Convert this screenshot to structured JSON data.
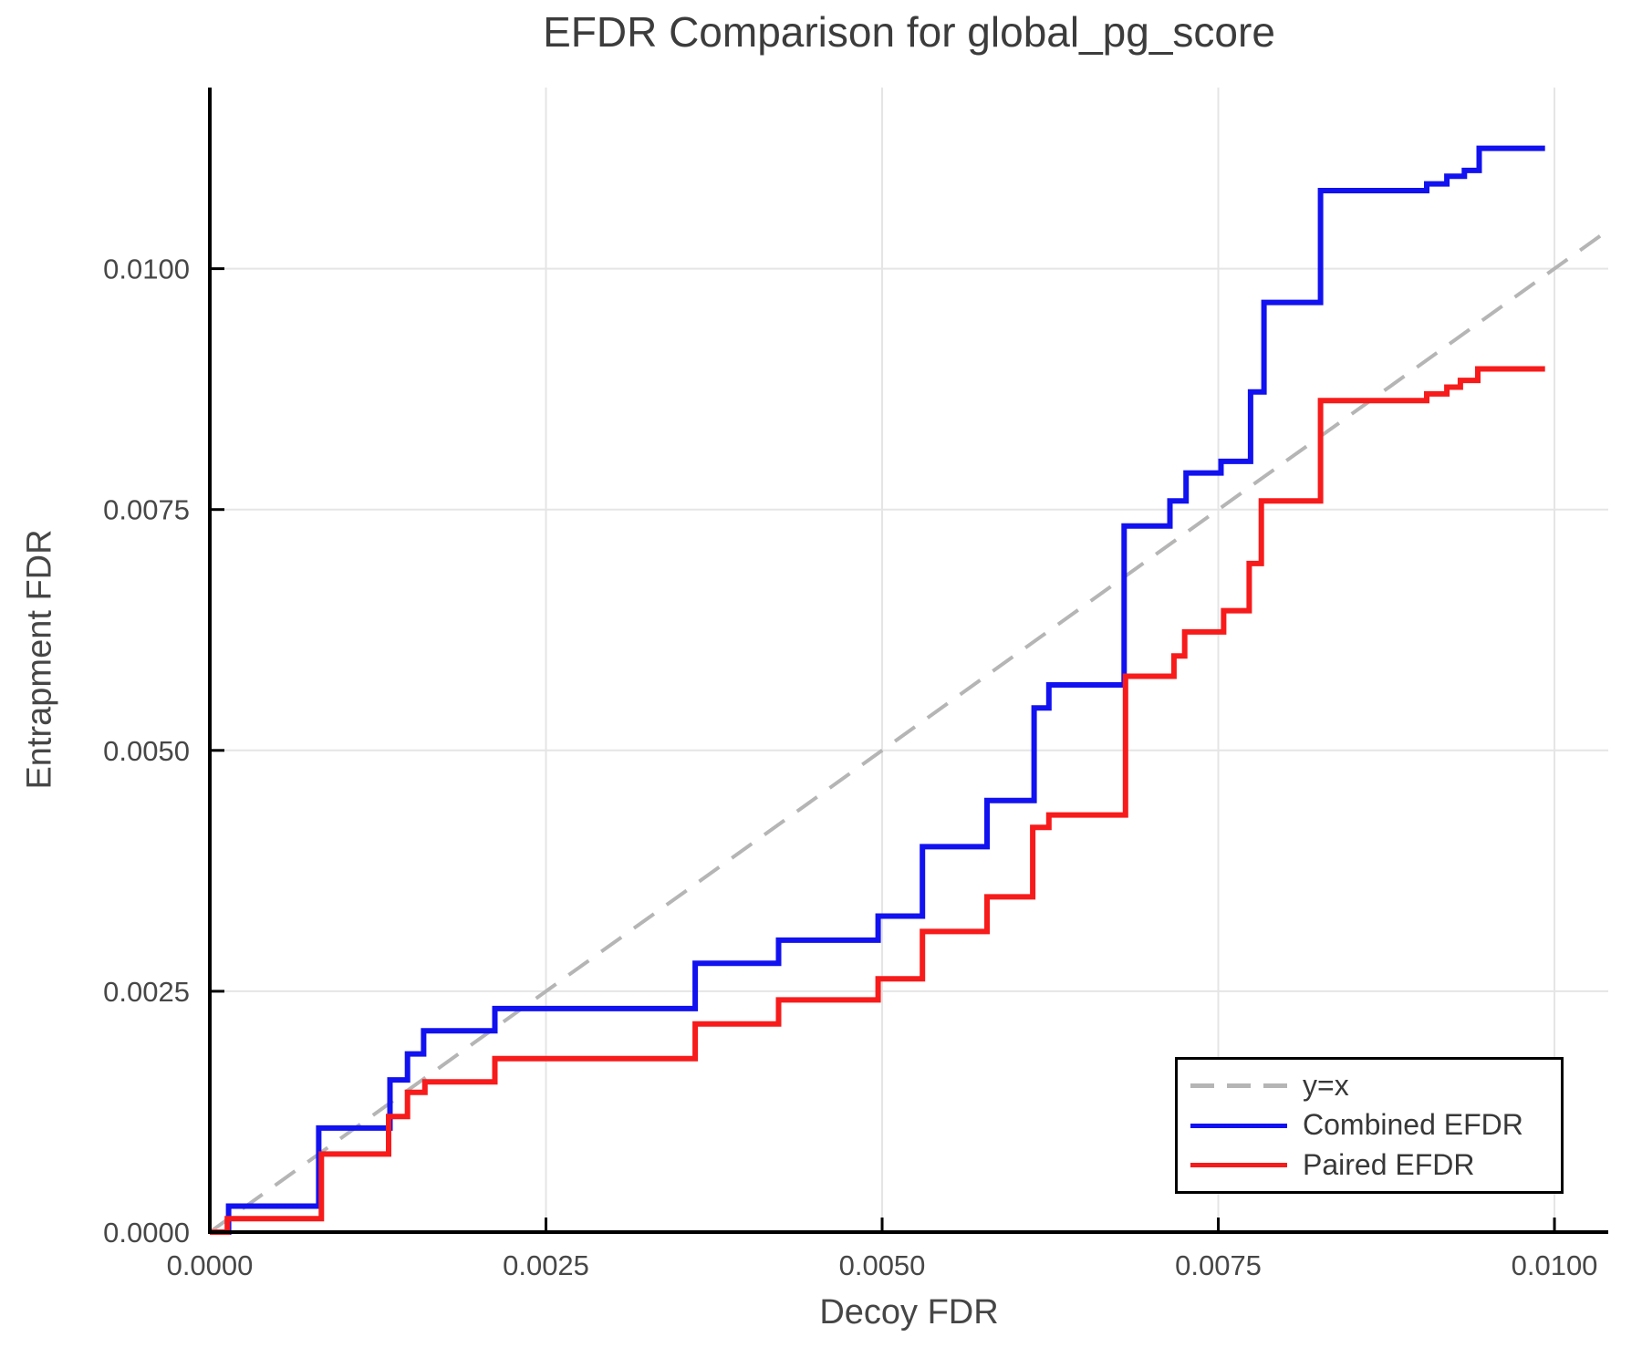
{
  "title": "EFDR Comparison for global_pg_score",
  "x_axis": {
    "label": "Decoy FDR",
    "tick_labels": [
      "0.0000",
      "0.0025",
      "0.0050",
      "0.0075",
      "0.0100"
    ],
    "tick_values": [
      0,
      0.0025,
      0.005,
      0.0075,
      0.01
    ]
  },
  "y_axis": {
    "label": "Entrapment FDR",
    "tick_labels": [
      "0.0000",
      "0.0025",
      "0.0050",
      "0.0075",
      "0.0100"
    ],
    "tick_values": [
      0,
      0.0025,
      0.005,
      0.0075,
      0.01
    ]
  },
  "legend": {
    "entries": [
      {
        "label": "y=x",
        "color": "#b5b5b5",
        "style": "dashed"
      },
      {
        "label": "Combined EFDR",
        "color": "#1212f0",
        "style": "solid"
      },
      {
        "label": "Paired EFDR",
        "color": "#f71b1b",
        "style": "solid"
      }
    ]
  },
  "style_colors": {
    "grid": "#e5e5e5",
    "spine": "#000000",
    "tick_text": "#474747"
  },
  "chart_data": {
    "type": "line",
    "subtype": "step",
    "title": "EFDR Comparison for global_pg_score",
    "xlabel": "Decoy FDR",
    "ylabel": "Entrapment FDR",
    "xlim": [
      0,
      0.0104
    ],
    "ylim": [
      0,
      0.01188
    ],
    "grid": true,
    "legend_position": "lower right",
    "reference_line": {
      "name": "y=x",
      "points": [
        [
          0,
          0
        ],
        [
          0.0104,
          0.0104
        ]
      ],
      "color": "#b5b5b5",
      "dashed": true
    },
    "series": [
      {
        "name": "Combined EFDR",
        "color": "#1212f0",
        "step": "post",
        "points": [
          [
            0.0,
            0.0
          ],
          [
            0.00014,
            0.00027
          ],
          [
            0.00081,
            0.00108
          ],
          [
            0.00134,
            0.00158
          ],
          [
            0.00147,
            0.00185
          ],
          [
            0.00159,
            0.00209
          ],
          [
            0.00212,
            0.00232
          ],
          [
            0.00361,
            0.00279
          ],
          [
            0.00423,
            0.00303
          ],
          [
            0.00497,
            0.00328
          ],
          [
            0.0053,
            0.004
          ],
          [
            0.00578,
            0.00448
          ],
          [
            0.00613,
            0.00544
          ],
          [
            0.00624,
            0.00568
          ],
          [
            0.0068,
            0.00733
          ],
          [
            0.00714,
            0.00759
          ],
          [
            0.00726,
            0.00788
          ],
          [
            0.00752,
            0.008
          ],
          [
            0.00774,
            0.00872
          ],
          [
            0.00784,
            0.00965
          ],
          [
            0.00826,
            0.01081
          ],
          [
            0.00905,
            0.01088
          ],
          [
            0.0092,
            0.01096
          ],
          [
            0.00933,
            0.01102
          ],
          [
            0.00944,
            0.01125
          ],
          [
            0.00993,
            0.01125
          ]
        ]
      },
      {
        "name": "Paired EFDR",
        "color": "#f71b1b",
        "step": "post",
        "points": [
          [
            0.0,
            0.0
          ],
          [
            0.00013,
            0.00014
          ],
          [
            0.00083,
            0.00081
          ],
          [
            0.00133,
            0.0012
          ],
          [
            0.00147,
            0.00145
          ],
          [
            0.0016,
            0.00156
          ],
          [
            0.00212,
            0.0018
          ],
          [
            0.00361,
            0.00216
          ],
          [
            0.00423,
            0.00241
          ],
          [
            0.00497,
            0.00263
          ],
          [
            0.0053,
            0.00312
          ],
          [
            0.00578,
            0.00348
          ],
          [
            0.00612,
            0.0042
          ],
          [
            0.00624,
            0.00433
          ],
          [
            0.00681,
            0.00577
          ],
          [
            0.00717,
            0.00598
          ],
          [
            0.00725,
            0.00623
          ],
          [
            0.00754,
            0.00645
          ],
          [
            0.00773,
            0.00694
          ],
          [
            0.00782,
            0.00759
          ],
          [
            0.00826,
            0.00863
          ],
          [
            0.00905,
            0.0087
          ],
          [
            0.0092,
            0.00877
          ],
          [
            0.0093,
            0.00884
          ],
          [
            0.00943,
            0.00896
          ],
          [
            0.00993,
            0.00896
          ]
        ]
      }
    ]
  }
}
